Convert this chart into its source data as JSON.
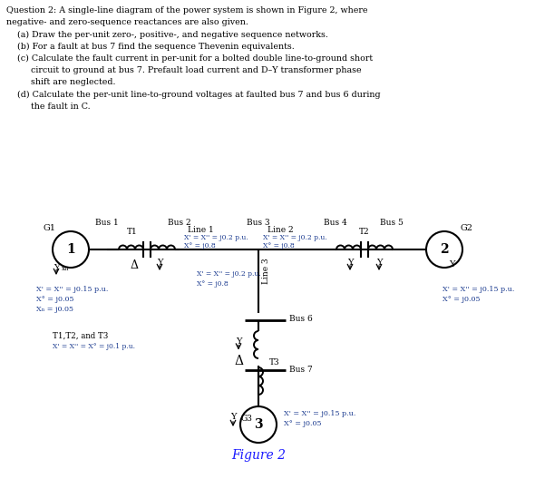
{
  "background_color": "#ffffff",
  "fig2_color": "#1a1aff",
  "text_color": "#000000",
  "title_lines": [
    "Question 2: A single-line diagram of the power system is shown in Figure 2, where",
    "negative- and zero-sequence reactances are also given.",
    "    (a) Draw the per-unit zero-, positive-, and negative sequence networks.",
    "    (b) For a fault at bus 7 find the sequence Thevenin equivalents.",
    "    (c) Calculate the fault current in per-unit for a bolted double line-to-ground short",
    "         circuit to ground at bus 7. Prefault load current and D–Y transformer phase",
    "         shift are neglected.",
    "    (d) Calculate the per-unit line-to-ground voltages at faulted bus 7 and bus 6 during",
    "         the fault in C."
  ],
  "param_color": "#1a3a8f"
}
